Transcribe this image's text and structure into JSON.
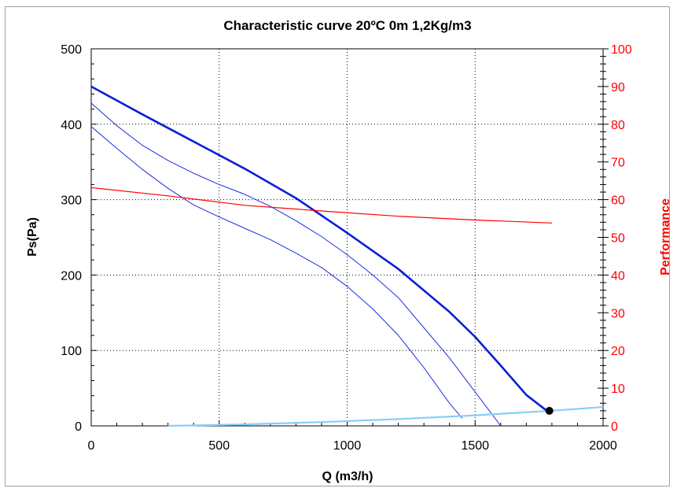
{
  "chart_data": {
    "type": "line",
    "title": "Characteristic curve 20ºC 0m 1,2Kg/m3",
    "xlabel": "Q (m3/h)",
    "ylabel": "Ps(Pa)",
    "y2label": "Performance",
    "xlim": [
      0,
      2000
    ],
    "ylim": [
      0,
      500
    ],
    "y2lim": [
      0,
      100
    ],
    "x_ticks": [
      0,
      500,
      1000,
      1500,
      2000
    ],
    "y_ticks": [
      0,
      100,
      200,
      300,
      400,
      500
    ],
    "y2_ticks": [
      0,
      10,
      20,
      30,
      40,
      50,
      60,
      70,
      80,
      90,
      100
    ],
    "grid": true,
    "colors": {
      "main_curve": "#0a1ed8",
      "speed_curves": "#1a2ee0",
      "performance": "#ff0000",
      "system_curve": "#87cefa",
      "operating_point": "#000000",
      "right_axis": "#ff0000"
    },
    "series": [
      {
        "axis": "left",
        "x": [
          0,
          200,
          400,
          600,
          800,
          1000,
          1200,
          1400,
          1500,
          1600,
          1700,
          1780
        ],
        "y": [
          450,
          413,
          377,
          341,
          302,
          256,
          208,
          151,
          118,
          80,
          41,
          20
        ]
      },
      {
        "axis": "left",
        "x": [
          0,
          100,
          200,
          300,
          400,
          500,
          600,
          700,
          800,
          900,
          1000,
          1100,
          1200,
          1300,
          1400,
          1500,
          1600
        ],
        "y": [
          428,
          398,
          372,
          352,
          335,
          320,
          307,
          291,
          272,
          251,
          227,
          200,
          170,
          130,
          90,
          45,
          0
        ]
      },
      {
        "axis": "left",
        "x": [
          0,
          100,
          200,
          300,
          400,
          500,
          600,
          700,
          800,
          900,
          1000,
          1100,
          1200,
          1300,
          1400,
          1450
        ],
        "y": [
          397,
          368,
          340,
          315,
          293,
          277,
          262,
          247,
          229,
          210,
          185,
          155,
          120,
          77,
          30,
          10
        ]
      },
      {
        "axis": "right",
        "x": [
          0,
          300,
          600,
          900,
          1200,
          1500,
          1800
        ],
        "y": [
          63.2,
          61.0,
          58.5,
          57.0,
          55.6,
          54.6,
          53.8
        ]
      },
      {
        "axis": "left",
        "x": [
          300,
          600,
          900,
          1200,
          1500,
          1800,
          2000
        ],
        "y": [
          0,
          2,
          5,
          9,
          14,
          20,
          25
        ]
      }
    ],
    "operating_point": {
      "x": 1790,
      "y": 20
    }
  }
}
